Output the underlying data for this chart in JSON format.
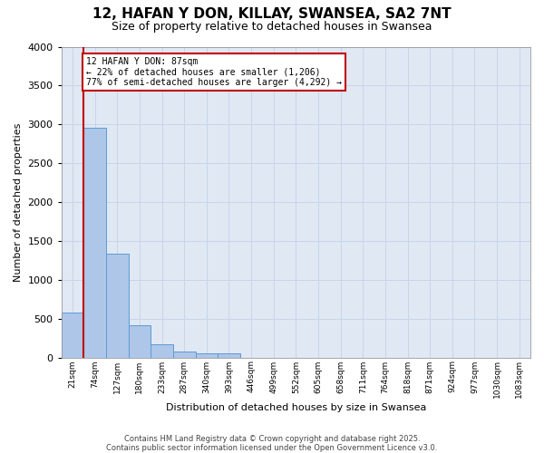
{
  "title": "12, HAFAN Y DON, KILLAY, SWANSEA, SA2 7NT",
  "subtitle": "Size of property relative to detached houses in Swansea",
  "xlabel": "Distribution of detached houses by size in Swansea",
  "ylabel": "Number of detached properties",
  "footer_line1": "Contains HM Land Registry data © Crown copyright and database right 2025.",
  "footer_line2": "Contains public sector information licensed under the Open Government Licence v3.0.",
  "categories": [
    "21sqm",
    "74sqm",
    "127sqm",
    "180sqm",
    "233sqm",
    "287sqm",
    "340sqm",
    "393sqm",
    "446sqm",
    "499sqm",
    "552sqm",
    "605sqm",
    "658sqm",
    "711sqm",
    "764sqm",
    "818sqm",
    "871sqm",
    "924sqm",
    "977sqm",
    "1030sqm",
    "1083sqm"
  ],
  "values": [
    580,
    2960,
    1340,
    420,
    170,
    80,
    55,
    55,
    0,
    0,
    0,
    0,
    0,
    0,
    0,
    0,
    0,
    0,
    0,
    0,
    0
  ],
  "bar_color": "#aec6e8",
  "bar_edge_color": "#5b9bd5",
  "vline_color": "#c00000",
  "vline_xindex": 1,
  "annotation_text": "12 HAFAN Y DON: 87sqm\n← 22% of detached houses are smaller (1,206)\n77% of semi-detached houses are larger (4,292) →",
  "annotation_box_edgecolor": "#c00000",
  "ylim": [
    0,
    4000
  ],
  "yticks": [
    0,
    500,
    1000,
    1500,
    2000,
    2500,
    3000,
    3500,
    4000
  ],
  "grid_color": "#c8d4e8",
  "background_color": "#e0e8f4",
  "title_fontsize": 11,
  "subtitle_fontsize": 9,
  "footer_fontsize": 6,
  "xlabel_fontsize": 8,
  "ylabel_fontsize": 8
}
